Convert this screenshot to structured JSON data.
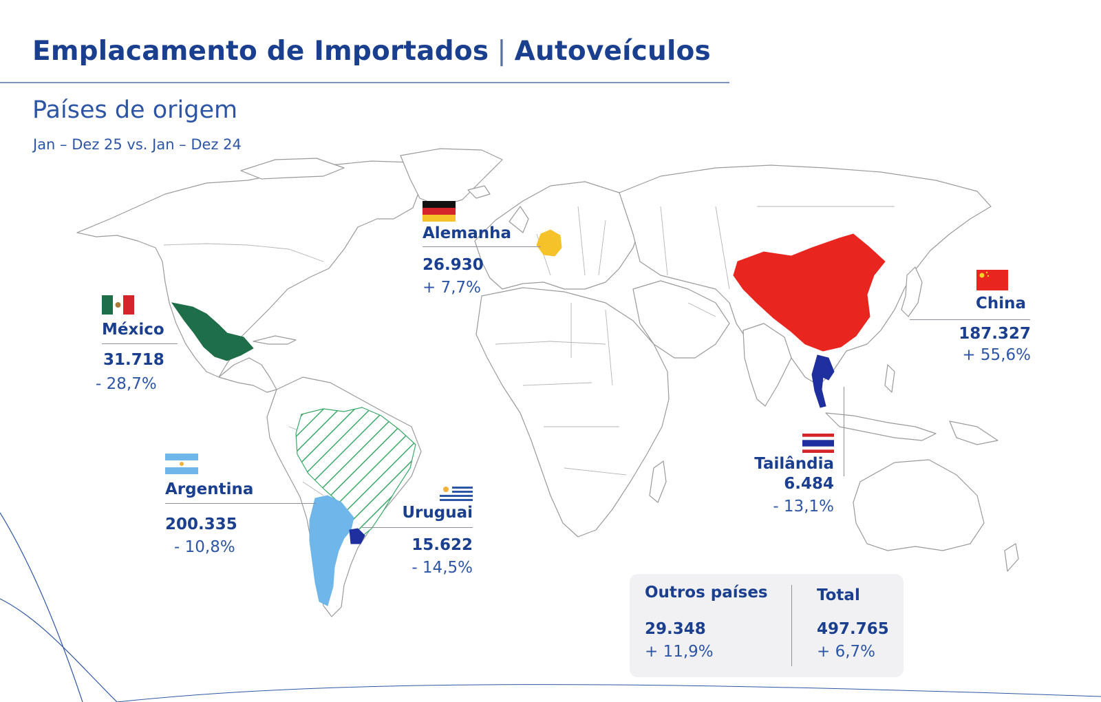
{
  "header": {
    "title_left": "Emplacamento de Importados",
    "title_separator": "|",
    "title_right": "Autoveículos",
    "subtitle": "Países de origem",
    "period": "Jan – Dez 25 vs. Jan – Dez 24"
  },
  "countries": {
    "mexico": {
      "name": "México",
      "value": "31.718",
      "change": "- 28,7%",
      "color": "#1f6e4a"
    },
    "germany": {
      "name": "Alemanha",
      "value": "26.930",
      "change": "+ 7,7%",
      "color": "#f5c22a"
    },
    "china": {
      "name": "China",
      "value": "187.327",
      "change": "+ 55,6%",
      "color": "#e8251f"
    },
    "thailand": {
      "name": "Tailândia",
      "value": "6.484",
      "change": "- 13,1%",
      "color": "#1f2f9e"
    },
    "argentina": {
      "name": "Argentina",
      "value": "200.335",
      "change": "- 10,8%",
      "color": "#6fb6ea"
    },
    "uruguay": {
      "name": "Uruguai",
      "value": "15.622",
      "change": "- 14,5%",
      "color": "#1f2f9e"
    }
  },
  "summary": {
    "others_label": "Outros países",
    "others_value": "29.348",
    "others_change": "+ 11,9%",
    "total_label": "Total",
    "total_value": "497.765",
    "total_change": "+ 6,7%"
  },
  "colors": {
    "title": "#1b3f8f",
    "subtitle": "#2d55a5",
    "land_outline": "#9a9a9a",
    "brazil_hatch": "#3aa868",
    "summary_bg": "#f1f1f3"
  }
}
